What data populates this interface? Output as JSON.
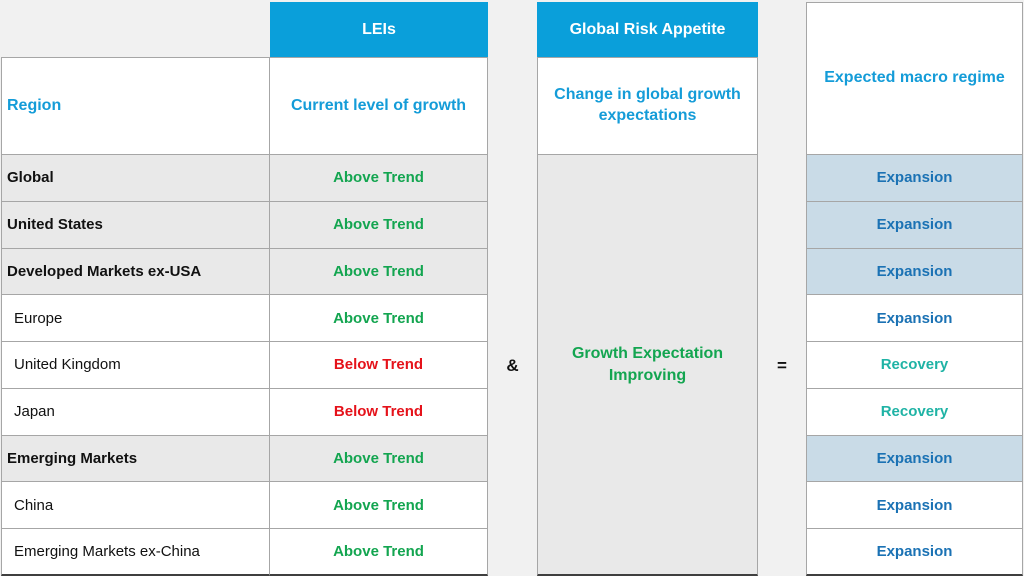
{
  "colors": {
    "header_bar_bg": "#0a9fda",
    "header_bar_text": "#ffffff",
    "blue_label_text": "#149cd8",
    "above_trend_text": "#13a550",
    "below_trend_text": "#e5121a",
    "expansion_text": "#1b72b4",
    "recovery_text": "#1fb3a5",
    "group_row_bg": "#e9e9e9",
    "expansion_cell_bg": "#c9dbe7",
    "merged_cell_bg": "#e9e9e9"
  },
  "lei_table": {
    "column_header": "LEIs",
    "region_header": "Region",
    "subheader": "Current level of growth"
  },
  "risk_table": {
    "column_header": "Global Risk Appetite",
    "subheader": "Change in global growth expectations",
    "merged_value": "Growth Expectation Improving"
  },
  "regime_table": {
    "column_header": "Expected macro regime"
  },
  "operators": {
    "and": "&",
    "equals": "="
  },
  "rows": [
    {
      "region": "Global",
      "growth": "Above Trend",
      "trend": "above",
      "group": true,
      "regime": "Expansion",
      "regime_shaded": true
    },
    {
      "region": "United States",
      "growth": "Above Trend",
      "trend": "above",
      "group": true,
      "regime": "Expansion",
      "regime_shaded": true
    },
    {
      "region": "Developed Markets ex-USA",
      "growth": "Above Trend",
      "trend": "above",
      "group": true,
      "regime": "Expansion",
      "regime_shaded": true
    },
    {
      "region": "Europe",
      "growth": "Above Trend",
      "trend": "above",
      "group": false,
      "regime": "Expansion",
      "regime_shaded": false
    },
    {
      "region": "United Kingdom",
      "growth": "Below Trend",
      "trend": "below",
      "group": false,
      "regime": "Recovery",
      "regime_shaded": false
    },
    {
      "region": "Japan",
      "growth": "Below Trend",
      "trend": "below",
      "group": false,
      "regime": "Recovery",
      "regime_shaded": false
    },
    {
      "region": "Emerging Markets",
      "growth": "Above Trend",
      "trend": "above",
      "group": true,
      "regime": "Expansion",
      "regime_shaded": true
    },
    {
      "region": "China",
      "growth": "Above Trend",
      "trend": "above",
      "group": false,
      "regime": "Expansion",
      "regime_shaded": false
    },
    {
      "region": "Emerging Markets ex-China",
      "growth": "Above Trend",
      "trend": "above",
      "group": false,
      "regime": "Expansion",
      "regime_shaded": false
    }
  ]
}
